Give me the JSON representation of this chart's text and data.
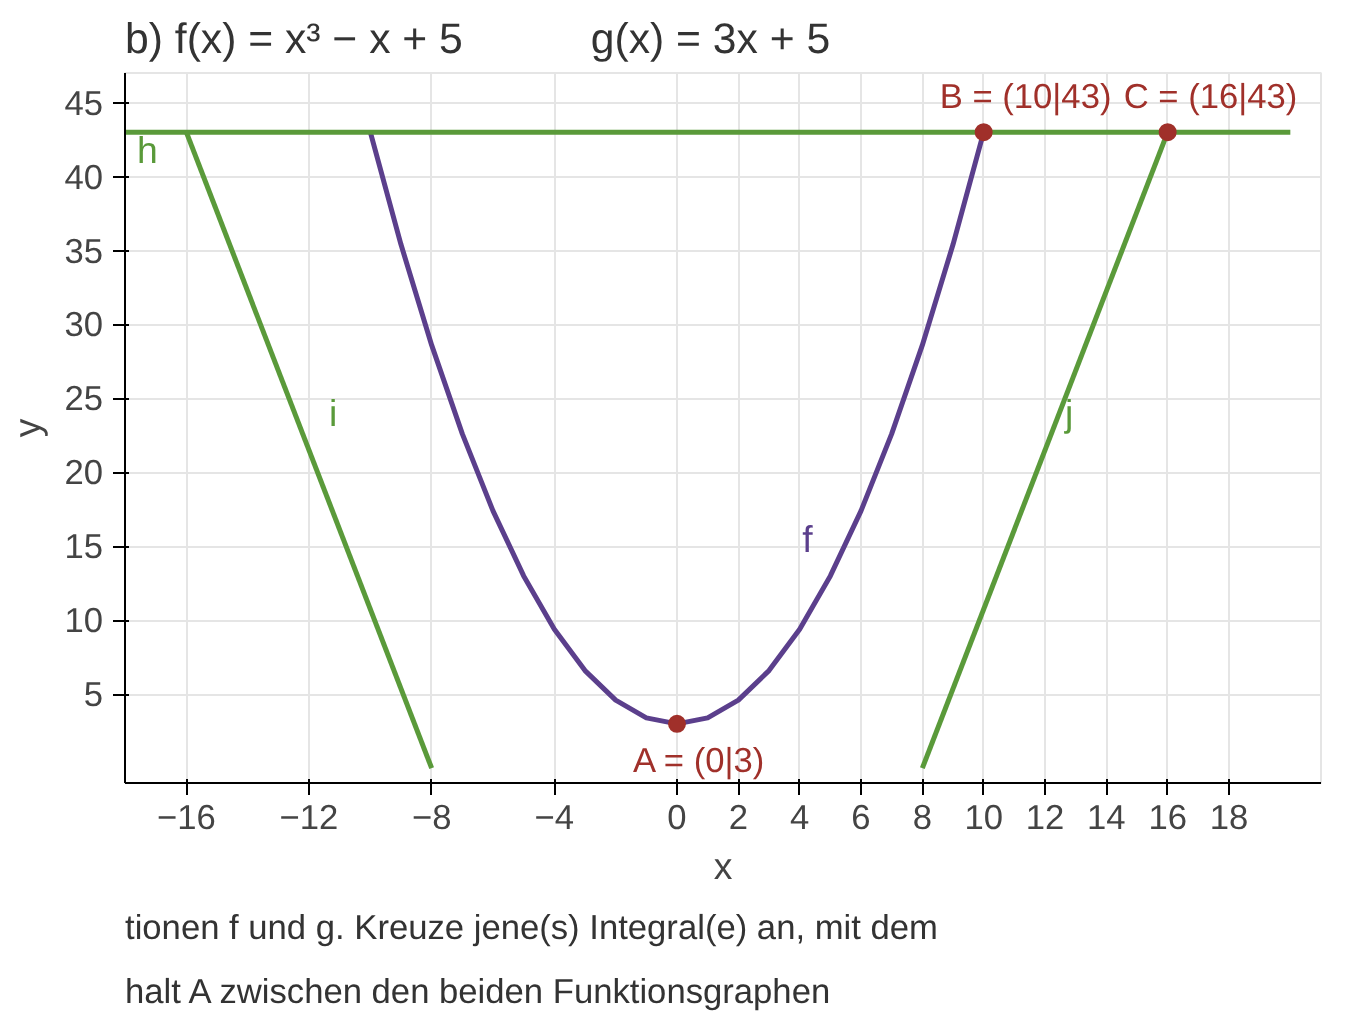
{
  "chart_data": {
    "type": "line",
    "title": "b) f(x) = x³ − x + 5",
    "subtitle": "g(x) = 3x + 5",
    "xlabel": "x",
    "ylabel": "y",
    "xlim": [
      -18,
      21
    ],
    "ylim": [
      -1,
      47
    ],
    "xticks": [
      -16,
      -12,
      -8,
      -4,
      0,
      2,
      4,
      6,
      8,
      10,
      12,
      14,
      16,
      18
    ],
    "yticks": [
      5,
      10,
      15,
      20,
      25,
      30,
      35,
      40,
      45
    ],
    "grid": true,
    "marker": "none",
    "line_style": "solid",
    "series": [
      {
        "name": "f",
        "color": "#5b3f8c",
        "x": [
          -10,
          -9,
          -8,
          -7,
          -6,
          -5,
          -4,
          -3,
          -2,
          -1,
          0,
          1,
          2,
          3,
          4,
          5,
          6,
          7,
          8,
          9,
          10
        ],
        "values": [
          43,
          35.4,
          28.6,
          22.6,
          17.4,
          13,
          9.4,
          6.6,
          4.6,
          3.4,
          3,
          3.4,
          4.6,
          6.6,
          9.4,
          13,
          17.4,
          22.6,
          28.6,
          35.4,
          43
        ]
      },
      {
        "name": "h",
        "color": "#5a9a3a",
        "x": [
          -18,
          20
        ],
        "values": [
          43,
          43
        ]
      },
      {
        "name": "i",
        "color": "#5a9a3a",
        "x": [
          -16,
          -8
        ],
        "values": [
          43,
          0
        ]
      },
      {
        "name": "j",
        "color": "#5a9a3a",
        "x": [
          8,
          16
        ],
        "values": [
          0,
          43
        ]
      },
      {
        "type": "scatter",
        "marker": "circle",
        "color": "#a0302a",
        "x": [
          0,
          10,
          16
        ],
        "values": [
          3,
          43,
          43
        ]
      }
    ],
    "annotations": [
      {
        "text": "A = (0|3)",
        "x": 0,
        "y": 3
      },
      {
        "text": "B = (10|43)",
        "x": 10,
        "y": 43
      },
      {
        "text": "C = (16|43)",
        "x": 16,
        "y": 43
      },
      "tionen f und g. Kreuze jene(s) Integral(e) an, mit dem",
      "halt A zwischen den beiden Funktionsgraphen"
    ]
  }
}
